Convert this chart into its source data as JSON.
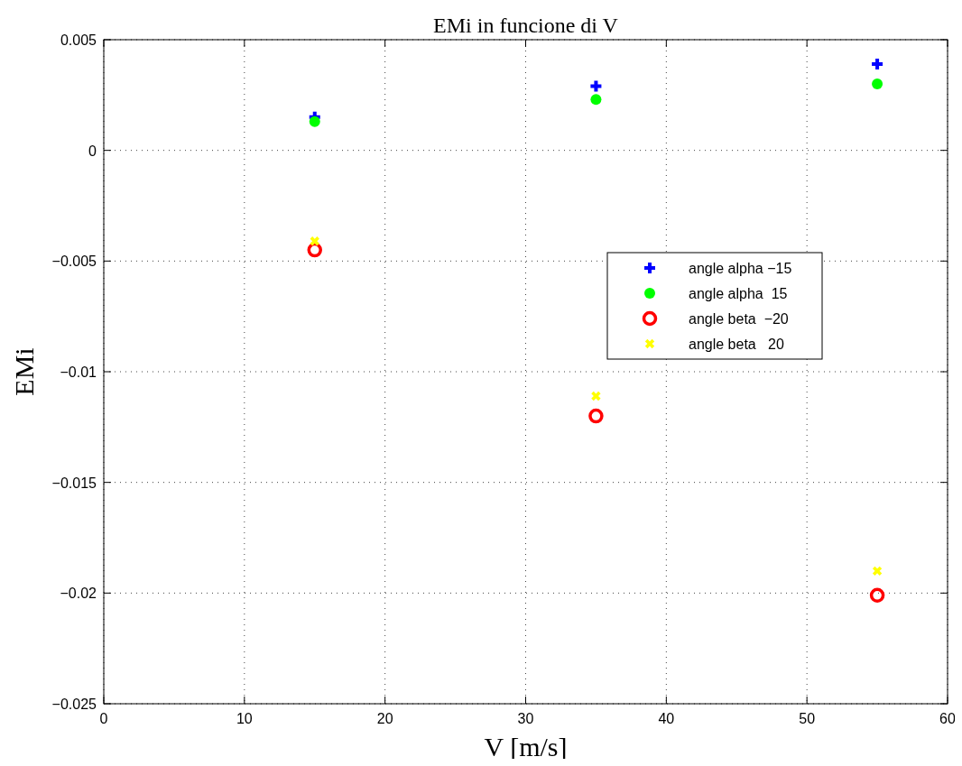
{
  "chart_data": {
    "type": "scatter",
    "title": "EMi in funcione di V",
    "xlabel": "V [m/s]",
    "ylabel": "EMi",
    "x": [
      15,
      35,
      55
    ],
    "series": [
      {
        "name": "angle alpha −15",
        "color": "#0000ff",
        "values": [
          0.0015,
          0.0029,
          0.0039
        ]
      },
      {
        "name": "angle alpha  15",
        "color": "#00ff00",
        "values": [
          0.0013,
          0.0023,
          0.003
        ]
      },
      {
        "name": "angle beta  −20",
        "color": "#ff0000",
        "values": [
          -0.0045,
          -0.012,
          -0.0201
        ]
      },
      {
        "name": "angle beta   20",
        "color": "#ffff00",
        "values": [
          -0.0041,
          -0.0111,
          -0.019
        ]
      }
    ],
    "xlim": [
      0,
      60
    ],
    "xticks": [
      0,
      10,
      20,
      30,
      40,
      50,
      60
    ],
    "ylim": [
      -0.025,
      0.005
    ],
    "yticks": [
      -0.025,
      -0.02,
      -0.015,
      -0.01,
      -0.005,
      0,
      0.005
    ],
    "grid": true,
    "legend": "right"
  }
}
